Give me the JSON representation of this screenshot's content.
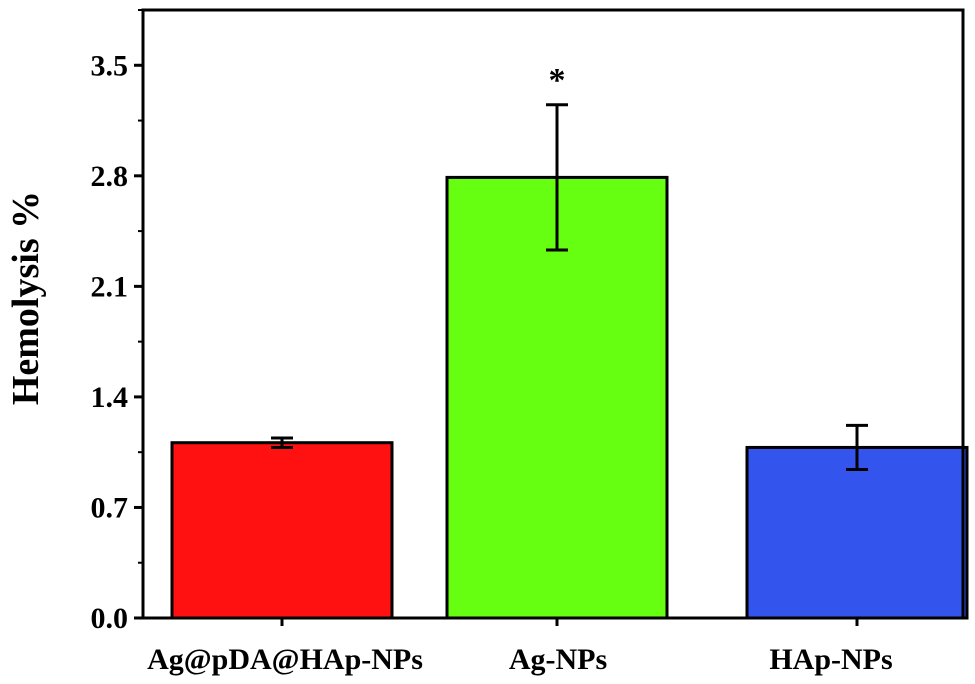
{
  "chart_data": {
    "type": "bar",
    "title": "",
    "xlabel": "",
    "ylabel": "Hemolysis %",
    "ylim": [
      0,
      3.85
    ],
    "yticks": [
      "0.0",
      "0.7",
      "1.4",
      "2.1",
      "2.8",
      "3.5"
    ],
    "ytick_values": [
      0,
      0.7,
      1.4,
      2.1,
      2.8,
      3.5
    ],
    "categories": [
      "Ag@pDA@HAp-NPs",
      "Ag-NPs",
      "HAp-NPs"
    ],
    "values": [
      1.11,
      2.79,
      1.08
    ],
    "errors": [
      0.03,
      0.46,
      0.14
    ],
    "colors": [
      "#ff1111",
      "#66ff11",
      "#3355ee"
    ],
    "annotations": [
      {
        "category": "Ag-NPs",
        "text": "*"
      }
    ],
    "grid": false,
    "legend": "none"
  }
}
